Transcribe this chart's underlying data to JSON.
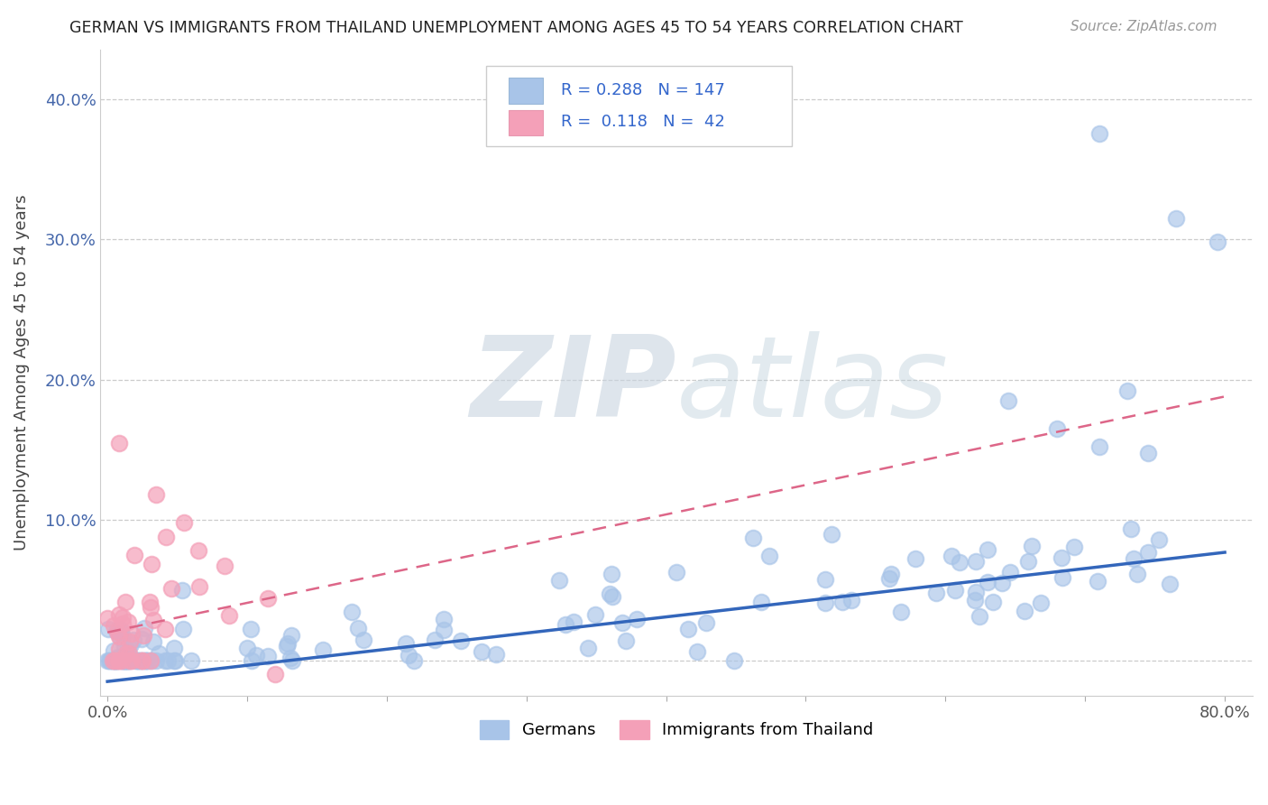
{
  "title": "GERMAN VS IMMIGRANTS FROM THAILAND UNEMPLOYMENT AMONG AGES 45 TO 54 YEARS CORRELATION CHART",
  "source": "Source: ZipAtlas.com",
  "ylabel": "Unemployment Among Ages 45 to 54 years",
  "xlabel": "",
  "xlim": [
    -0.005,
    0.82
  ],
  "ylim": [
    -0.025,
    0.435
  ],
  "yticks": [
    0.0,
    0.1,
    0.2,
    0.3,
    0.4
  ],
  "ytick_labels": [
    "",
    "10.0%",
    "20.0%",
    "30.0%",
    "40.0%"
  ],
  "xticks": [
    0.0,
    0.1,
    0.2,
    0.3,
    0.4,
    0.5,
    0.6,
    0.7,
    0.8
  ],
  "xtick_labels": [
    "0.0%",
    "",
    "",
    "",
    "",
    "",
    "",
    "",
    "80.0%"
  ],
  "german_color": "#a8c4e8",
  "thailand_color": "#f4a0b8",
  "german_R": 0.288,
  "german_N": 147,
  "thailand_R": 0.118,
  "thailand_N": 42,
  "watermark_zip": "ZIP",
  "watermark_atlas": "atlas",
  "background_color": "#ffffff",
  "grid_color": "#cccccc",
  "german_line_color": "#3366bb",
  "thailand_line_color": "#dd6688"
}
